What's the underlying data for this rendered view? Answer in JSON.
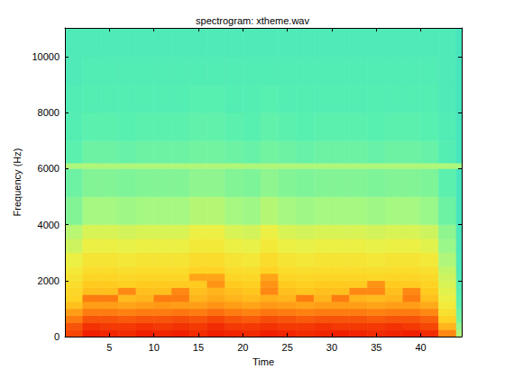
{
  "chart_data": {
    "type": "heatmap",
    "title": "spectrogram: xtheme.wav",
    "x_label": "Time",
    "y_label": "Frequency (Hz)",
    "xlim": [
      0,
      44.6
    ],
    "xticks": [
      5,
      10,
      15,
      20,
      25,
      30,
      35,
      40
    ],
    "ylim": [
      0,
      11025
    ],
    "yticks": [
      0,
      2000,
      4000,
      6000,
      8000,
      10000
    ],
    "color_range": [
      0,
      100
    ],
    "time_edges": [
      0,
      2,
      4,
      6,
      8,
      10,
      12,
      14,
      16,
      18,
      20,
      22,
      24,
      26,
      28,
      30,
      32,
      34,
      36,
      38,
      40,
      42,
      44,
      44.6
    ],
    "freq_edges": [
      0,
      250,
      500,
      750,
      1000,
      1250,
      1500,
      1750,
      2000,
      2250,
      2500,
      3000,
      3500,
      4000,
      5000,
      6000,
      6200,
      7000,
      8000,
      9000,
      10000,
      11025
    ],
    "cells": [
      [
        80,
        86,
        85,
        84,
        86,
        85,
        86,
        84,
        86,
        85,
        84,
        86,
        85,
        84,
        85,
        86,
        85,
        84,
        85,
        86,
        84,
        70,
        30
      ],
      [
        78,
        83,
        82,
        82,
        83,
        82,
        83,
        82,
        84,
        82,
        82,
        83,
        82,
        82,
        83,
        82,
        82,
        82,
        83,
        82,
        80,
        62,
        25
      ],
      [
        72,
        78,
        78,
        77,
        78,
        78,
        79,
        78,
        80,
        78,
        77,
        79,
        78,
        77,
        78,
        78,
        78,
        77,
        78,
        78,
        76,
        56,
        20
      ],
      [
        66,
        72,
        72,
        71,
        72,
        72,
        73,
        72,
        74,
        72,
        71,
        73,
        72,
        71,
        72,
        72,
        72,
        71,
        72,
        72,
        70,
        50,
        18
      ],
      [
        60,
        66,
        66,
        65,
        66,
        67,
        66,
        66,
        68,
        66,
        65,
        67,
        66,
        65,
        66,
        66,
        66,
        65,
        66,
        66,
        64,
        45,
        15
      ],
      [
        56,
        72,
        72,
        61,
        62,
        72,
        72,
        62,
        64,
        62,
        61,
        63,
        62,
        72,
        62,
        72,
        62,
        61,
        62,
        72,
        60,
        42,
        14
      ],
      [
        54,
        60,
        60,
        70,
        60,
        60,
        70,
        60,
        62,
        60,
        59,
        70,
        60,
        59,
        60,
        60,
        70,
        70,
        60,
        70,
        58,
        40,
        13
      ],
      [
        52,
        58,
        58,
        57,
        58,
        58,
        58,
        58,
        68,
        58,
        57,
        68,
        58,
        57,
        58,
        58,
        58,
        68,
        58,
        58,
        56,
        38,
        12
      ],
      [
        49,
        55,
        55,
        54,
        55,
        55,
        55,
        65,
        65,
        55,
        54,
        65,
        55,
        54,
        55,
        55,
        55,
        54,
        55,
        55,
        53,
        36,
        11
      ],
      [
        46,
        52,
        52,
        51,
        52,
        52,
        52,
        56,
        56,
        52,
        51,
        56,
        52,
        51,
        52,
        52,
        52,
        51,
        52,
        52,
        50,
        34,
        10
      ],
      [
        42,
        48,
        48,
        47,
        48,
        48,
        48,
        52,
        52,
        48,
        47,
        52,
        48,
        47,
        48,
        48,
        48,
        47,
        48,
        48,
        46,
        30,
        10
      ],
      [
        36,
        42,
        42,
        41,
        42,
        42,
        42,
        46,
        46,
        42,
        41,
        46,
        42,
        41,
        42,
        42,
        42,
        41,
        42,
        42,
        40,
        26,
        9
      ],
      [
        32,
        38,
        38,
        37,
        38,
        38,
        38,
        42,
        42,
        38,
        37,
        42,
        38,
        37,
        38,
        38,
        38,
        37,
        38,
        38,
        36,
        24,
        9
      ],
      [
        22,
        28,
        28,
        27,
        28,
        28,
        28,
        31,
        31,
        28,
        27,
        31,
        28,
        27,
        28,
        28,
        28,
        27,
        28,
        28,
        26,
        18,
        8
      ],
      [
        18,
        22,
        22,
        21,
        22,
        22,
        22,
        24,
        24,
        22,
        21,
        24,
        22,
        21,
        22,
        22,
        22,
        21,
        22,
        22,
        21,
        15,
        8
      ],
      [
        30,
        30,
        30,
        30,
        30,
        30,
        30,
        30,
        30,
        30,
        30,
        30,
        30,
        30,
        30,
        30,
        30,
        30,
        30,
        30,
        30,
        30,
        28
      ],
      [
        15,
        18,
        18,
        17,
        18,
        18,
        18,
        19,
        19,
        18,
        17,
        19,
        18,
        17,
        18,
        18,
        18,
        17,
        18,
        18,
        17,
        13,
        8
      ],
      [
        13,
        15,
        15,
        14,
        15,
        15,
        15,
        16,
        16,
        15,
        14,
        16,
        15,
        14,
        15,
        15,
        15,
        14,
        15,
        15,
        14,
        12,
        8
      ],
      [
        12,
        13,
        13,
        13,
        13,
        13,
        13,
        14,
        14,
        13,
        13,
        14,
        13,
        13,
        13,
        13,
        13,
        13,
        13,
        13,
        13,
        11,
        8
      ],
      [
        11,
        12,
        12,
        12,
        12,
        12,
        12,
        12,
        12,
        12,
        12,
        12,
        12,
        12,
        12,
        12,
        12,
        12,
        12,
        12,
        12,
        11,
        8
      ],
      [
        11,
        11,
        11,
        11,
        11,
        11,
        11,
        11,
        11,
        11,
        11,
        11,
        11,
        11,
        11,
        11,
        11,
        11,
        11,
        11,
        11,
        11,
        8
      ]
    ]
  }
}
